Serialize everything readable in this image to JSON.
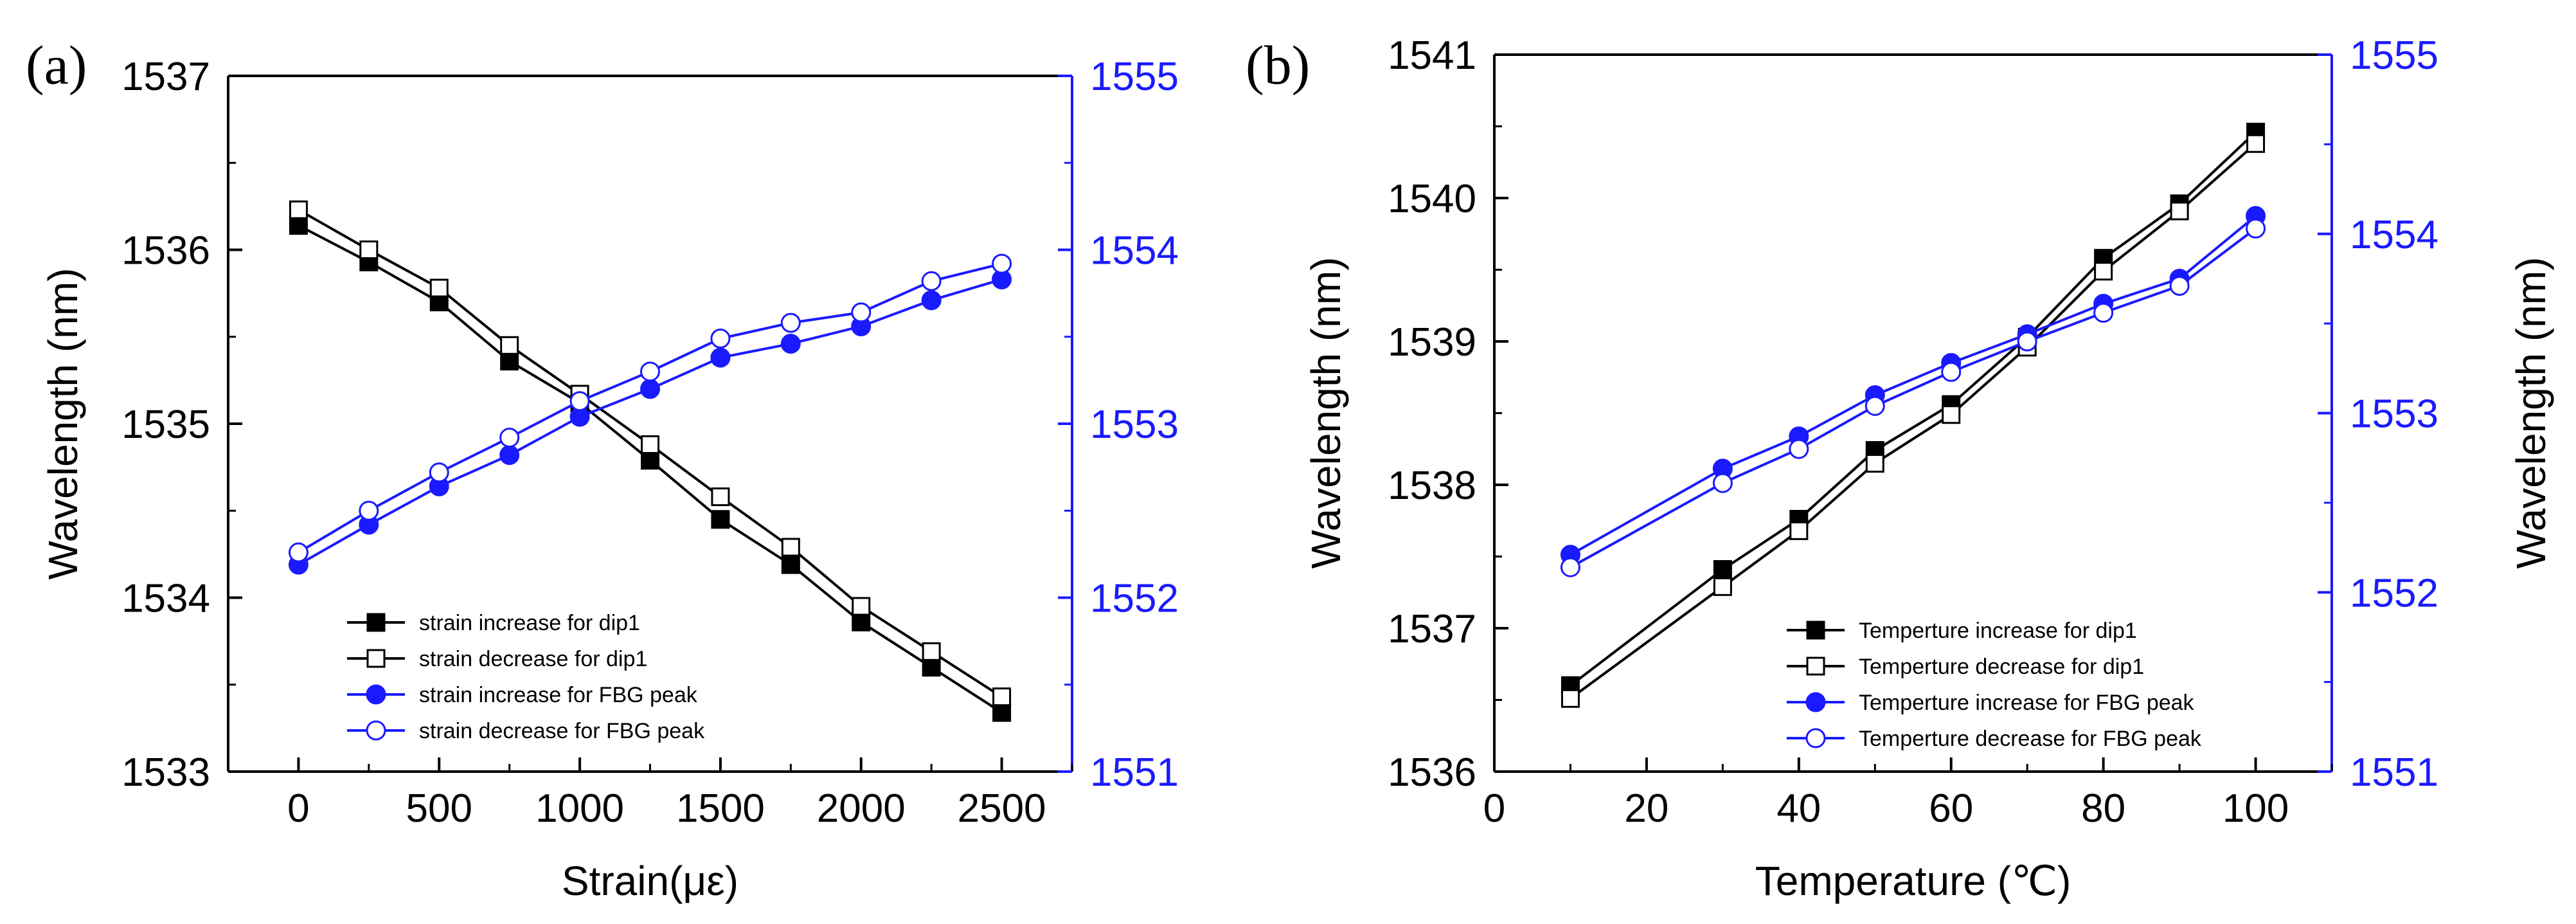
{
  "colors": {
    "black_series": "#000000",
    "blue_series": "#1a1aff",
    "right_axis": "#1a1aff"
  },
  "chart_data": [
    {
      "panel_label": "(a)",
      "type": "line",
      "xlabel": "Strain(με)",
      "ylabel_left": "Wavelength (nm)",
      "ylabel_right": "",
      "xlim": [
        -250,
        2750
      ],
      "ylim_left": [
        1533,
        1537
      ],
      "ylim_right": [
        1551,
        1555
      ],
      "xticks": [
        0,
        500,
        1000,
        1500,
        2000,
        2500
      ],
      "xtick_labels": [
        "0",
        "500",
        "1000",
        "1500",
        "2000",
        "2500"
      ],
      "yticks_left": [
        1533,
        1534,
        1535,
        1536,
        1537
      ],
      "ytick_labels_left": [
        "1533",
        "1534",
        "1535",
        "1536",
        "1537"
      ],
      "yticks_right": [
        1551,
        1552,
        1553,
        1554,
        1555
      ],
      "ytick_labels_right": [
        "1551",
        "1552",
        "1553",
        "1554",
        "1555"
      ],
      "legend_position": "lower-left",
      "x": [
        0,
        250,
        500,
        750,
        1000,
        1250,
        1500,
        1750,
        2000,
        2250,
        2500
      ],
      "series": [
        {
          "name": "strain increase for dip1",
          "axis": "left",
          "color": "#000000",
          "marker": "square-filled",
          "values": [
            1536.14,
            1535.93,
            1535.7,
            1535.36,
            1535.12,
            1534.79,
            1534.45,
            1534.19,
            1533.86,
            1533.6,
            1533.34
          ]
        },
        {
          "name": "strain decrease for dip1",
          "axis": "left",
          "color": "#000000",
          "marker": "square-open",
          "values": [
            1536.23,
            1536.0,
            1535.78,
            1535.45,
            1535.17,
            1534.88,
            1534.58,
            1534.29,
            1533.95,
            1533.69,
            1533.43
          ]
        },
        {
          "name": "strain increase for FBG peak",
          "axis": "right",
          "color": "#1a1aff",
          "marker": "circle-filled",
          "values": [
            1552.19,
            1552.42,
            1552.64,
            1552.82,
            1553.04,
            1553.2,
            1553.38,
            1553.46,
            1553.56,
            1553.71,
            1553.83
          ]
        },
        {
          "name": "strain decrease for FBG peak",
          "axis": "right",
          "color": "#1a1aff",
          "marker": "circle-open",
          "values": [
            1552.26,
            1552.5,
            1552.72,
            1552.92,
            1553.13,
            1553.3,
            1553.49,
            1553.58,
            1553.64,
            1553.82,
            1553.92
          ]
        }
      ]
    },
    {
      "panel_label": "(b)",
      "type": "line",
      "xlabel": "Temperature (℃)",
      "ylabel_left": "Wavelength (nm)",
      "ylabel_right": "Wavelength (nm)",
      "xlim": [
        0,
        110
      ],
      "ylim_left": [
        1536,
        1541
      ],
      "ylim_right": [
        1551,
        1555
      ],
      "xticks": [
        0,
        20,
        40,
        60,
        80,
        100
      ],
      "xtick_labels": [
        "0",
        "20",
        "40",
        "60",
        "80",
        "100"
      ],
      "yticks_left": [
        1536,
        1537,
        1538,
        1539,
        1540,
        1541
      ],
      "ytick_labels_left": [
        "1536",
        "1537",
        "1538",
        "1539",
        "1540",
        "1541"
      ],
      "yticks_right": [
        1551,
        1552,
        1553,
        1554,
        1555
      ],
      "ytick_labels_right": [
        "1551",
        "1552",
        "1553",
        "1554",
        "1555"
      ],
      "legend_position": "lower-right",
      "x": [
        10,
        30,
        40,
        50,
        60,
        70,
        80,
        90,
        100
      ],
      "series": [
        {
          "name": "Temperture increase for dip1",
          "axis": "left",
          "color": "#000000",
          "marker": "square-filled",
          "values": [
            1536.6,
            1537.41,
            1537.76,
            1538.24,
            1538.56,
            1539.03,
            1539.58,
            1539.96,
            1540.46
          ]
        },
        {
          "name": "Temperture decrease for dip1",
          "axis": "left",
          "color": "#000000",
          "marker": "square-open",
          "values": [
            1536.51,
            1537.29,
            1537.68,
            1538.15,
            1538.49,
            1538.96,
            1539.49,
            1539.91,
            1540.38
          ]
        },
        {
          "name": "Temperture increase for FBG peak",
          "axis": "right",
          "color": "#1a1aff",
          "marker": "circle-filled",
          "values": [
            1552.21,
            1552.69,
            1552.87,
            1553.1,
            1553.28,
            1553.44,
            1553.61,
            1553.75,
            1554.1
          ]
        },
        {
          "name": "Temperture decrease for FBG peak",
          "axis": "right",
          "color": "#1a1aff",
          "marker": "circle-open",
          "values": [
            1552.14,
            1552.61,
            1552.8,
            1553.04,
            1553.23,
            1553.4,
            1553.56,
            1553.71,
            1554.03
          ]
        }
      ]
    }
  ]
}
